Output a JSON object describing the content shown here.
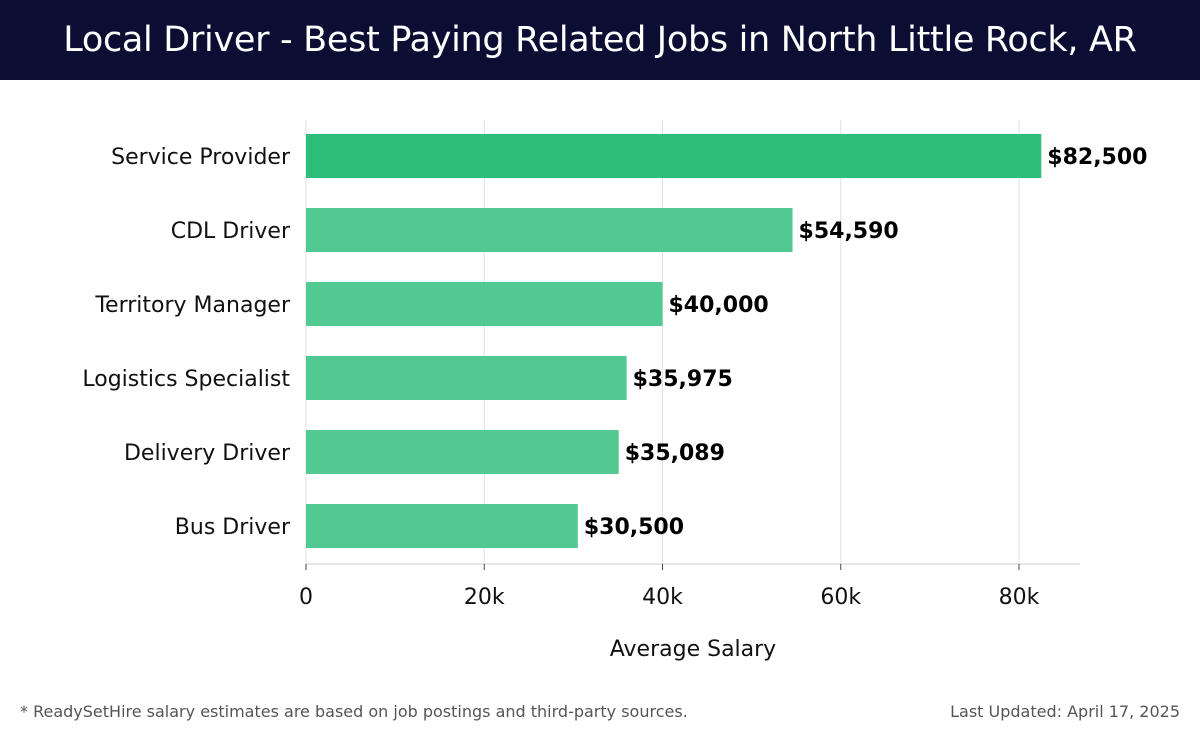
{
  "header": {
    "title": "Local Driver - Best Paying Related Jobs in North Little Rock, AR"
  },
  "chart_data": {
    "type": "bar",
    "orientation": "horizontal",
    "categories": [
      "Service Provider",
      "CDL Driver",
      "Territory Manager",
      "Logistics Specialist",
      "Delivery Driver",
      "Bus Driver"
    ],
    "values": [
      82500,
      54590,
      40000,
      35975,
      35089,
      30500
    ],
    "value_labels": [
      "$82,500",
      "$54,590",
      "$40,000",
      "$35,975",
      "$35,089",
      "$30,500"
    ],
    "xlabel": "Average Salary",
    "ylabel": "",
    "xlim": [
      0,
      87000
    ],
    "xticks": [
      0,
      20000,
      40000,
      60000,
      80000
    ],
    "xtick_labels": [
      "0",
      "20k",
      "40k",
      "60k",
      "80k"
    ],
    "grid": "vertical",
    "colors": {
      "highlight_bar": "#2dbf78",
      "bar": "#52c992",
      "grid": "#e0e0e0",
      "label": "#111111",
      "value_label": "#000000"
    }
  },
  "footer": {
    "note": "* ReadySetHire salary estimates are based on job postings and third-party sources.",
    "updated": "Last Updated: April 17, 2025"
  }
}
